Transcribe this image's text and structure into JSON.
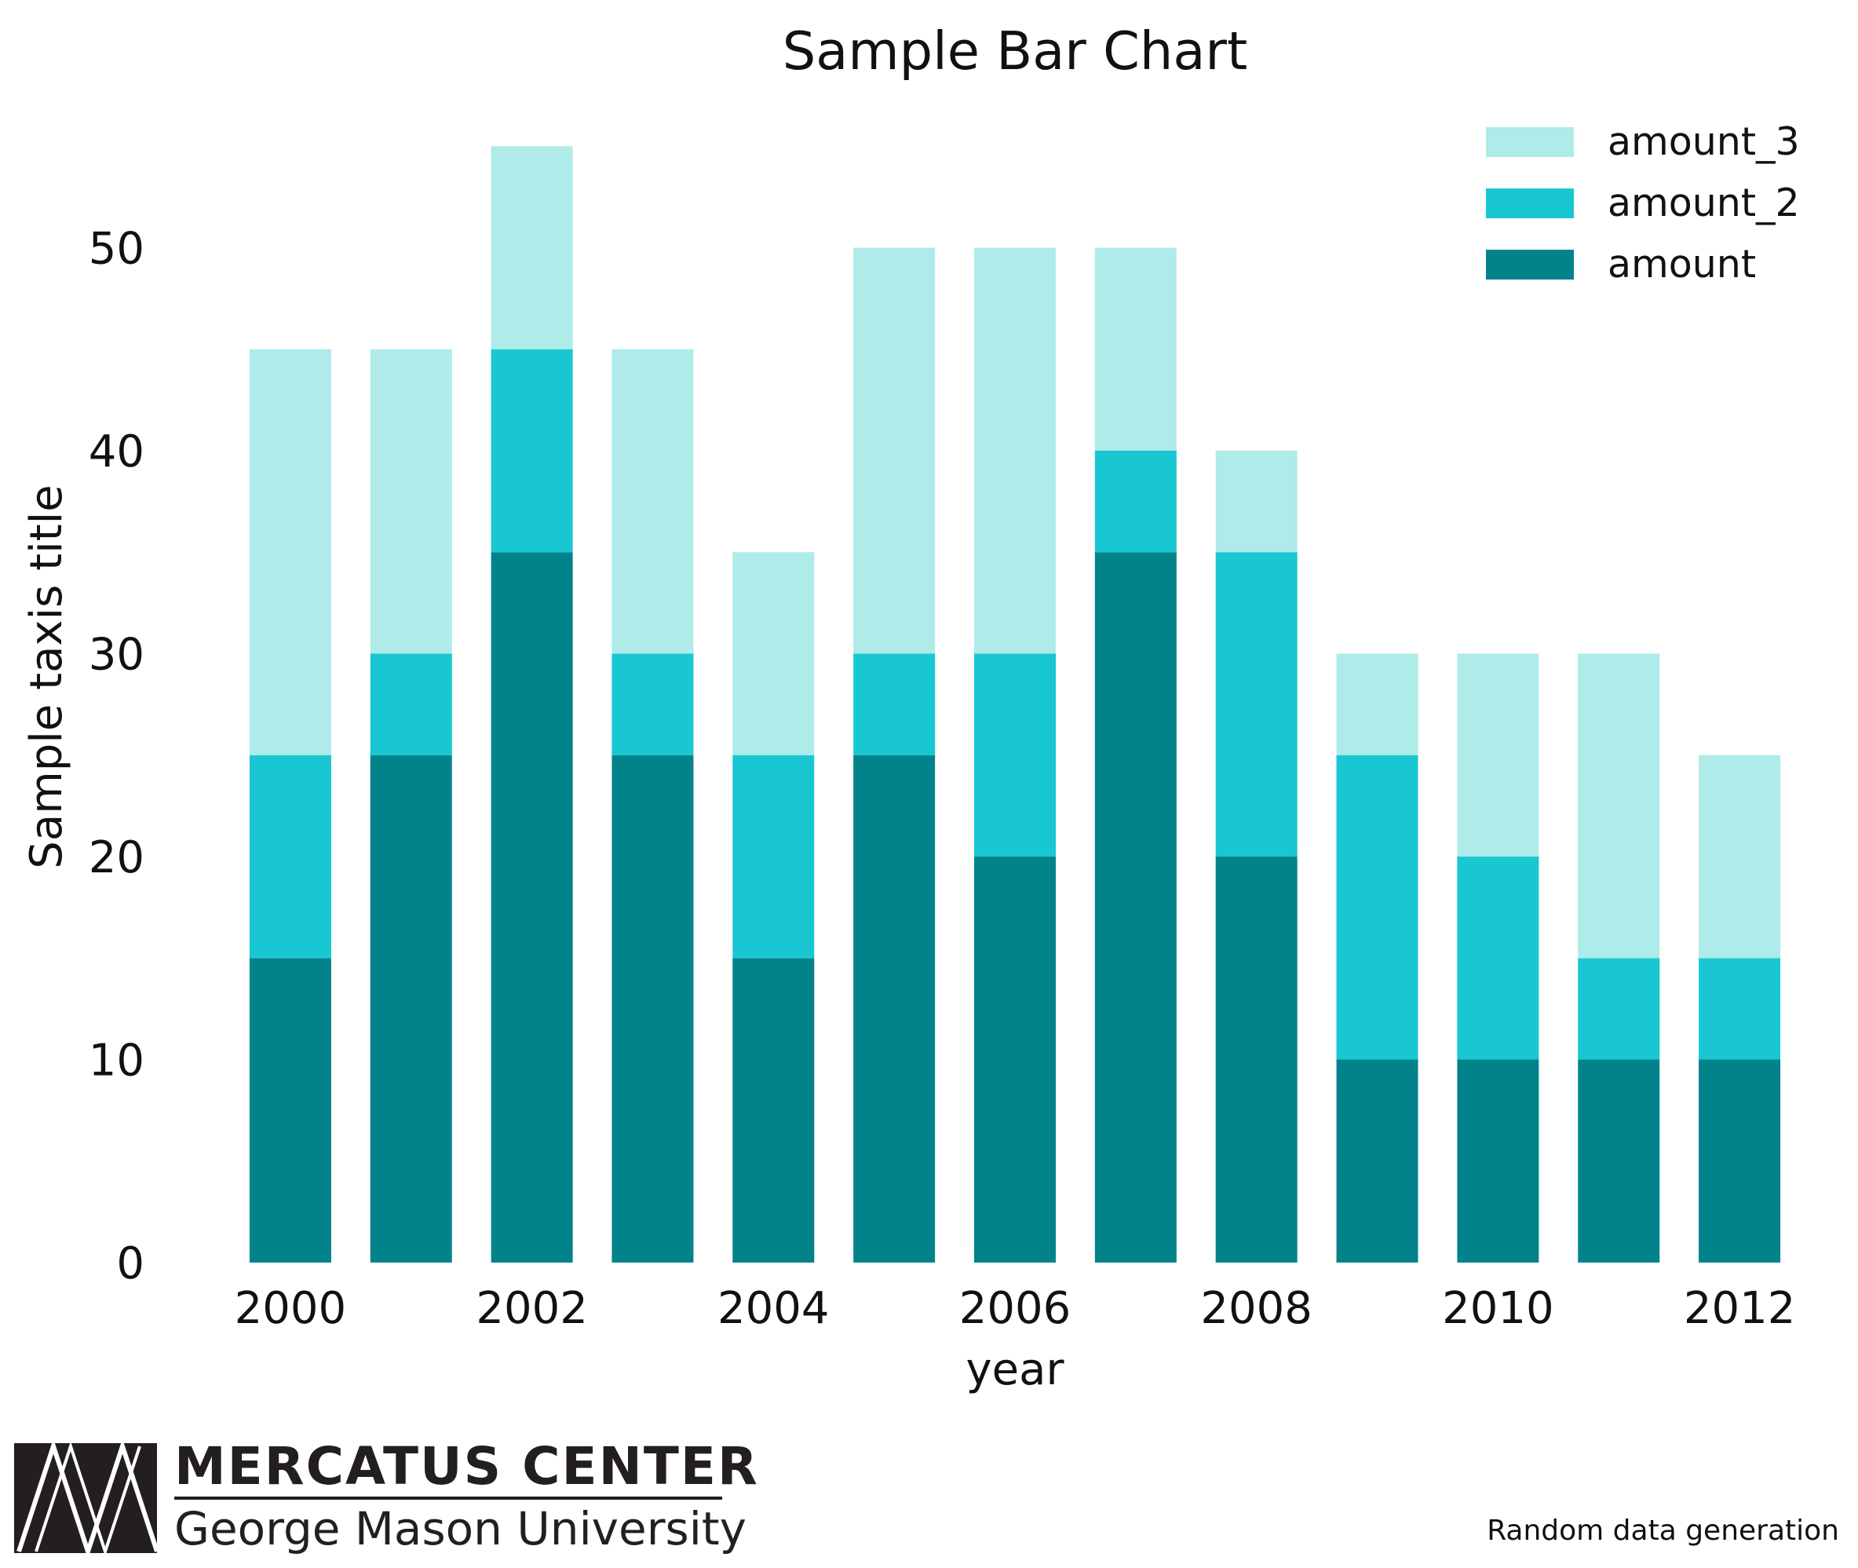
{
  "chart_data": {
    "type": "bar",
    "stacked": true,
    "title": "Sample Bar Chart",
    "xlabel": "year",
    "ylabel": "Sample taxis title",
    "categories": [
      2000,
      2001,
      2002,
      2003,
      2004,
      2005,
      2006,
      2007,
      2008,
      2009,
      2010,
      2011,
      2012
    ],
    "x_tick_labels": [
      "2000",
      "2002",
      "2004",
      "2006",
      "2008",
      "2010",
      "2012"
    ],
    "y_ticks": [
      0,
      10,
      20,
      30,
      40,
      50
    ],
    "ylim": [
      0,
      55
    ],
    "grid": false,
    "legend_position": "top-right",
    "series": [
      {
        "name": "amount",
        "color": "#02838c",
        "values": [
          15,
          25,
          35,
          25,
          15,
          25,
          20,
          35,
          20,
          10,
          10,
          10,
          10
        ]
      },
      {
        "name": "amount_2",
        "color": "#18c7d1",
        "values": [
          10,
          5,
          10,
          5,
          10,
          5,
          10,
          5,
          15,
          15,
          10,
          5,
          5
        ]
      },
      {
        "name": "amount_3",
        "color": "#aeebe9",
        "values": [
          20,
          15,
          10,
          15,
          10,
          20,
          20,
          10,
          5,
          5,
          10,
          15,
          10
        ]
      }
    ]
  },
  "branding": {
    "logo_name": "MERCATUS CENTER",
    "logo_university": "George Mason University",
    "logo_color": "#231f20"
  },
  "footer": {
    "source_note": "Random data generation"
  }
}
